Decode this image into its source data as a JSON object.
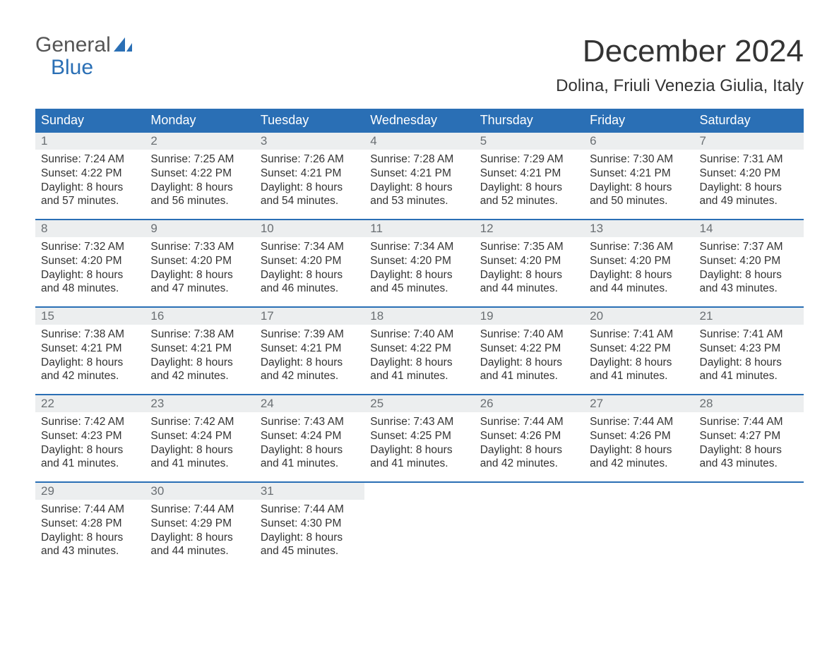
{
  "logo": {
    "general": "General",
    "blue": "Blue",
    "shape_color": "#2a6fb5"
  },
  "title": "December 2024",
  "location": "Dolina, Friuli Venezia Giulia, Italy",
  "colors": {
    "header_bg": "#2a6fb5",
    "header_text": "#ffffff",
    "daynum_bg": "#eceeef",
    "daynum_text": "#6a6f73",
    "body_text": "#333333",
    "week_border": "#2a6fb5",
    "page_bg": "#ffffff"
  },
  "typography": {
    "title_fontsize": 44,
    "location_fontsize": 24,
    "dow_fontsize": 18,
    "daynum_fontsize": 17,
    "body_fontsize": 15.5
  },
  "dow": [
    "Sunday",
    "Monday",
    "Tuesday",
    "Wednesday",
    "Thursday",
    "Friday",
    "Saturday"
  ],
  "weeks": [
    [
      {
        "n": "1",
        "sunrise": "Sunrise: 7:24 AM",
        "sunset": "Sunset: 4:22 PM",
        "d1": "Daylight: 8 hours",
        "d2": "and 57 minutes."
      },
      {
        "n": "2",
        "sunrise": "Sunrise: 7:25 AM",
        "sunset": "Sunset: 4:22 PM",
        "d1": "Daylight: 8 hours",
        "d2": "and 56 minutes."
      },
      {
        "n": "3",
        "sunrise": "Sunrise: 7:26 AM",
        "sunset": "Sunset: 4:21 PM",
        "d1": "Daylight: 8 hours",
        "d2": "and 54 minutes."
      },
      {
        "n": "4",
        "sunrise": "Sunrise: 7:28 AM",
        "sunset": "Sunset: 4:21 PM",
        "d1": "Daylight: 8 hours",
        "d2": "and 53 minutes."
      },
      {
        "n": "5",
        "sunrise": "Sunrise: 7:29 AM",
        "sunset": "Sunset: 4:21 PM",
        "d1": "Daylight: 8 hours",
        "d2": "and 52 minutes."
      },
      {
        "n": "6",
        "sunrise": "Sunrise: 7:30 AM",
        "sunset": "Sunset: 4:21 PM",
        "d1": "Daylight: 8 hours",
        "d2": "and 50 minutes."
      },
      {
        "n": "7",
        "sunrise": "Sunrise: 7:31 AM",
        "sunset": "Sunset: 4:20 PM",
        "d1": "Daylight: 8 hours",
        "d2": "and 49 minutes."
      }
    ],
    [
      {
        "n": "8",
        "sunrise": "Sunrise: 7:32 AM",
        "sunset": "Sunset: 4:20 PM",
        "d1": "Daylight: 8 hours",
        "d2": "and 48 minutes."
      },
      {
        "n": "9",
        "sunrise": "Sunrise: 7:33 AM",
        "sunset": "Sunset: 4:20 PM",
        "d1": "Daylight: 8 hours",
        "d2": "and 47 minutes."
      },
      {
        "n": "10",
        "sunrise": "Sunrise: 7:34 AM",
        "sunset": "Sunset: 4:20 PM",
        "d1": "Daylight: 8 hours",
        "d2": "and 46 minutes."
      },
      {
        "n": "11",
        "sunrise": "Sunrise: 7:34 AM",
        "sunset": "Sunset: 4:20 PM",
        "d1": "Daylight: 8 hours",
        "d2": "and 45 minutes."
      },
      {
        "n": "12",
        "sunrise": "Sunrise: 7:35 AM",
        "sunset": "Sunset: 4:20 PM",
        "d1": "Daylight: 8 hours",
        "d2": "and 44 minutes."
      },
      {
        "n": "13",
        "sunrise": "Sunrise: 7:36 AM",
        "sunset": "Sunset: 4:20 PM",
        "d1": "Daylight: 8 hours",
        "d2": "and 44 minutes."
      },
      {
        "n": "14",
        "sunrise": "Sunrise: 7:37 AM",
        "sunset": "Sunset: 4:20 PM",
        "d1": "Daylight: 8 hours",
        "d2": "and 43 minutes."
      }
    ],
    [
      {
        "n": "15",
        "sunrise": "Sunrise: 7:38 AM",
        "sunset": "Sunset: 4:21 PM",
        "d1": "Daylight: 8 hours",
        "d2": "and 42 minutes."
      },
      {
        "n": "16",
        "sunrise": "Sunrise: 7:38 AM",
        "sunset": "Sunset: 4:21 PM",
        "d1": "Daylight: 8 hours",
        "d2": "and 42 minutes."
      },
      {
        "n": "17",
        "sunrise": "Sunrise: 7:39 AM",
        "sunset": "Sunset: 4:21 PM",
        "d1": "Daylight: 8 hours",
        "d2": "and 42 minutes."
      },
      {
        "n": "18",
        "sunrise": "Sunrise: 7:40 AM",
        "sunset": "Sunset: 4:22 PM",
        "d1": "Daylight: 8 hours",
        "d2": "and 41 minutes."
      },
      {
        "n": "19",
        "sunrise": "Sunrise: 7:40 AM",
        "sunset": "Sunset: 4:22 PM",
        "d1": "Daylight: 8 hours",
        "d2": "and 41 minutes."
      },
      {
        "n": "20",
        "sunrise": "Sunrise: 7:41 AM",
        "sunset": "Sunset: 4:22 PM",
        "d1": "Daylight: 8 hours",
        "d2": "and 41 minutes."
      },
      {
        "n": "21",
        "sunrise": "Sunrise: 7:41 AM",
        "sunset": "Sunset: 4:23 PM",
        "d1": "Daylight: 8 hours",
        "d2": "and 41 minutes."
      }
    ],
    [
      {
        "n": "22",
        "sunrise": "Sunrise: 7:42 AM",
        "sunset": "Sunset: 4:23 PM",
        "d1": "Daylight: 8 hours",
        "d2": "and 41 minutes."
      },
      {
        "n": "23",
        "sunrise": "Sunrise: 7:42 AM",
        "sunset": "Sunset: 4:24 PM",
        "d1": "Daylight: 8 hours",
        "d2": "and 41 minutes."
      },
      {
        "n": "24",
        "sunrise": "Sunrise: 7:43 AM",
        "sunset": "Sunset: 4:24 PM",
        "d1": "Daylight: 8 hours",
        "d2": "and 41 minutes."
      },
      {
        "n": "25",
        "sunrise": "Sunrise: 7:43 AM",
        "sunset": "Sunset: 4:25 PM",
        "d1": "Daylight: 8 hours",
        "d2": "and 41 minutes."
      },
      {
        "n": "26",
        "sunrise": "Sunrise: 7:44 AM",
        "sunset": "Sunset: 4:26 PM",
        "d1": "Daylight: 8 hours",
        "d2": "and 42 minutes."
      },
      {
        "n": "27",
        "sunrise": "Sunrise: 7:44 AM",
        "sunset": "Sunset: 4:26 PM",
        "d1": "Daylight: 8 hours",
        "d2": "and 42 minutes."
      },
      {
        "n": "28",
        "sunrise": "Sunrise: 7:44 AM",
        "sunset": "Sunset: 4:27 PM",
        "d1": "Daylight: 8 hours",
        "d2": "and 43 minutes."
      }
    ],
    [
      {
        "n": "29",
        "sunrise": "Sunrise: 7:44 AM",
        "sunset": "Sunset: 4:28 PM",
        "d1": "Daylight: 8 hours",
        "d2": "and 43 minutes."
      },
      {
        "n": "30",
        "sunrise": "Sunrise: 7:44 AM",
        "sunset": "Sunset: 4:29 PM",
        "d1": "Daylight: 8 hours",
        "d2": "and 44 minutes."
      },
      {
        "n": "31",
        "sunrise": "Sunrise: 7:44 AM",
        "sunset": "Sunset: 4:30 PM",
        "d1": "Daylight: 8 hours",
        "d2": "and 45 minutes."
      },
      null,
      null,
      null,
      null
    ]
  ]
}
